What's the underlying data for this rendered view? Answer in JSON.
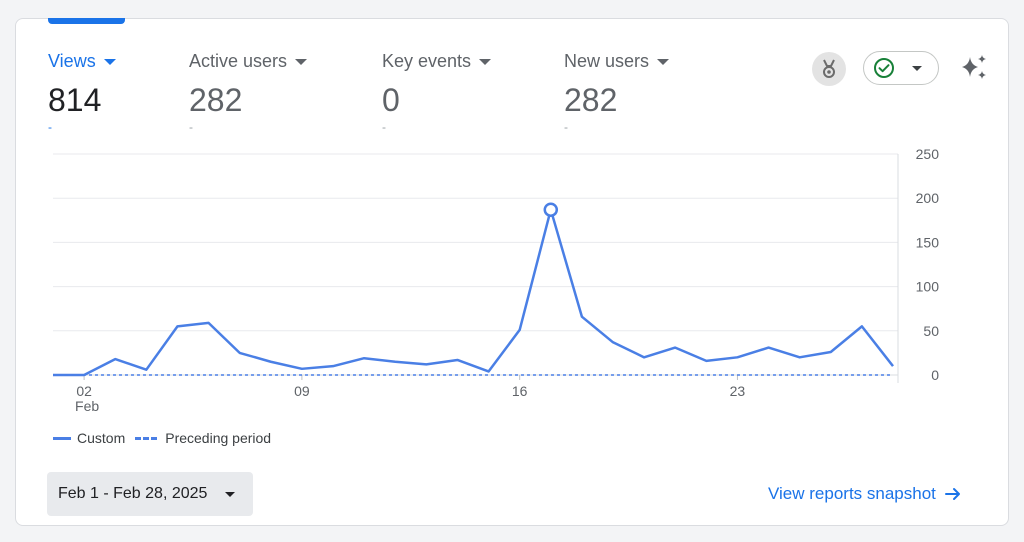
{
  "metrics": [
    {
      "label": "Views",
      "value": "814",
      "delta": "-"
    },
    {
      "label": "Active users",
      "value": "282",
      "delta": "-"
    },
    {
      "label": "Key events",
      "value": "0",
      "delta": "-"
    },
    {
      "label": "New users",
      "value": "282",
      "delta": "-"
    }
  ],
  "legend": {
    "custom": "Custom",
    "preceding": "Preceding period"
  },
  "date_range": "Feb 1 - Feb 28, 2025",
  "snapshot_link": "View reports snapshot",
  "colors": {
    "accent": "#1a73e8",
    "line": "#4a7fe5",
    "status_check": "#188038"
  },
  "icons": {
    "badge": "award-icon",
    "status": "check-circle-icon",
    "insights": "sparkle-icon",
    "link": "arrow-right-icon"
  },
  "chart_data": {
    "type": "line",
    "title": "",
    "xlabel": "",
    "ylabel": "",
    "x": [
      1,
      2,
      3,
      4,
      5,
      6,
      7,
      8,
      9,
      10,
      11,
      12,
      13,
      14,
      15,
      16,
      17,
      18,
      19,
      20,
      21,
      22,
      23,
      24,
      25,
      26,
      27,
      28
    ],
    "x_tick_labels": [
      {
        "day": 2,
        "label": "02",
        "sublabel": "Feb"
      },
      {
        "day": 9,
        "label": "09"
      },
      {
        "day": 16,
        "label": "16"
      },
      {
        "day": 23,
        "label": "23"
      }
    ],
    "series": [
      {
        "name": "Custom",
        "style": "solid",
        "values": [
          0,
          0,
          18,
          6,
          55,
          59,
          25,
          15,
          7,
          10,
          19,
          15,
          12,
          17,
          4,
          51,
          187,
          66,
          37,
          20,
          31,
          16,
          20,
          31,
          20,
          26,
          55,
          10
        ]
      },
      {
        "name": "Preceding period",
        "style": "dashed",
        "values": [
          0,
          0,
          0,
          0,
          0,
          0,
          0,
          0,
          0,
          0,
          0,
          0,
          0,
          0,
          0,
          0,
          0,
          0,
          0,
          0,
          0,
          0,
          0,
          0,
          0,
          0,
          0,
          0
        ]
      }
    ],
    "highlight": {
      "day": 17,
      "value": 187
    },
    "ylim": [
      0,
      250
    ],
    "yticks": [
      0,
      50,
      100,
      150,
      200,
      250
    ],
    "grid": true,
    "legend_position": "bottom-left"
  }
}
